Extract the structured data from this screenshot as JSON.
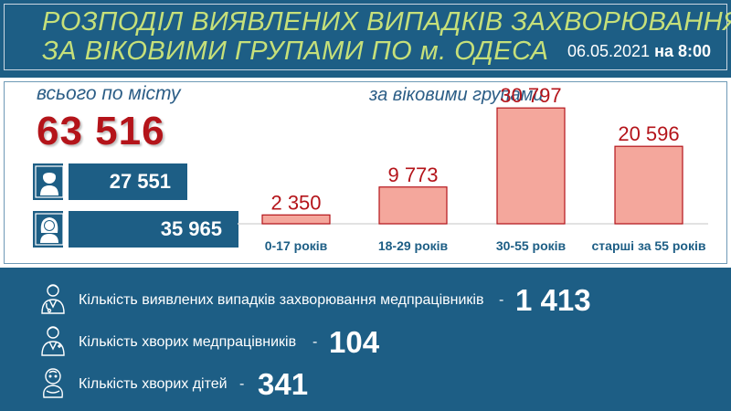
{
  "header": {
    "title_line1": "РОЗПОДІЛ ВИЯВЛЕНИХ ВИПАДКІВ ЗАХВОРЮВАННЯ",
    "title_line2": "ЗА ВІКОВИМИ ГРУПАМИ ПО м. ОДЕСА",
    "date": "06.05.2021",
    "date_sep": "на",
    "time": "8:00"
  },
  "totals": {
    "city_label": "всього по місту",
    "city_total": "63 516",
    "male_total": "27 551",
    "female_total": "35 965",
    "male_icon": "male-person-icon",
    "female_icon": "female-person-icon"
  },
  "chart_data": {
    "type": "bar",
    "title": "за віковими групами",
    "categories": [
      "0-17 років",
      "18-29 років",
      "30-55 років",
      "старші за 55 років"
    ],
    "values": [
      2350,
      9773,
      30797,
      20596
    ],
    "value_labels": [
      "2 350",
      "9 773",
      "30 797",
      "20 596"
    ],
    "ylim": [
      0,
      34000
    ],
    "grid": false,
    "bar_color": "#f4a79c",
    "bar_stroke": "#b4141a",
    "label_color": "#b4141a"
  },
  "stats": [
    {
      "icon": "medical-worker-icon",
      "text": "Кількість виявлених випадків захворювання медпрацівників",
      "dash": "-",
      "value": "1 413"
    },
    {
      "icon": "sick-medical-worker-icon",
      "text": "Кількість хворих медпрацівників",
      "dash": "-",
      "value": "104"
    },
    {
      "icon": "baby-icon",
      "text": "Кількість хворих дітей",
      "dash": "-",
      "value": "341"
    }
  ],
  "colors": {
    "background": "#1d5e85",
    "title_accent": "#c6e07a",
    "highlight_red": "#b4141a"
  }
}
